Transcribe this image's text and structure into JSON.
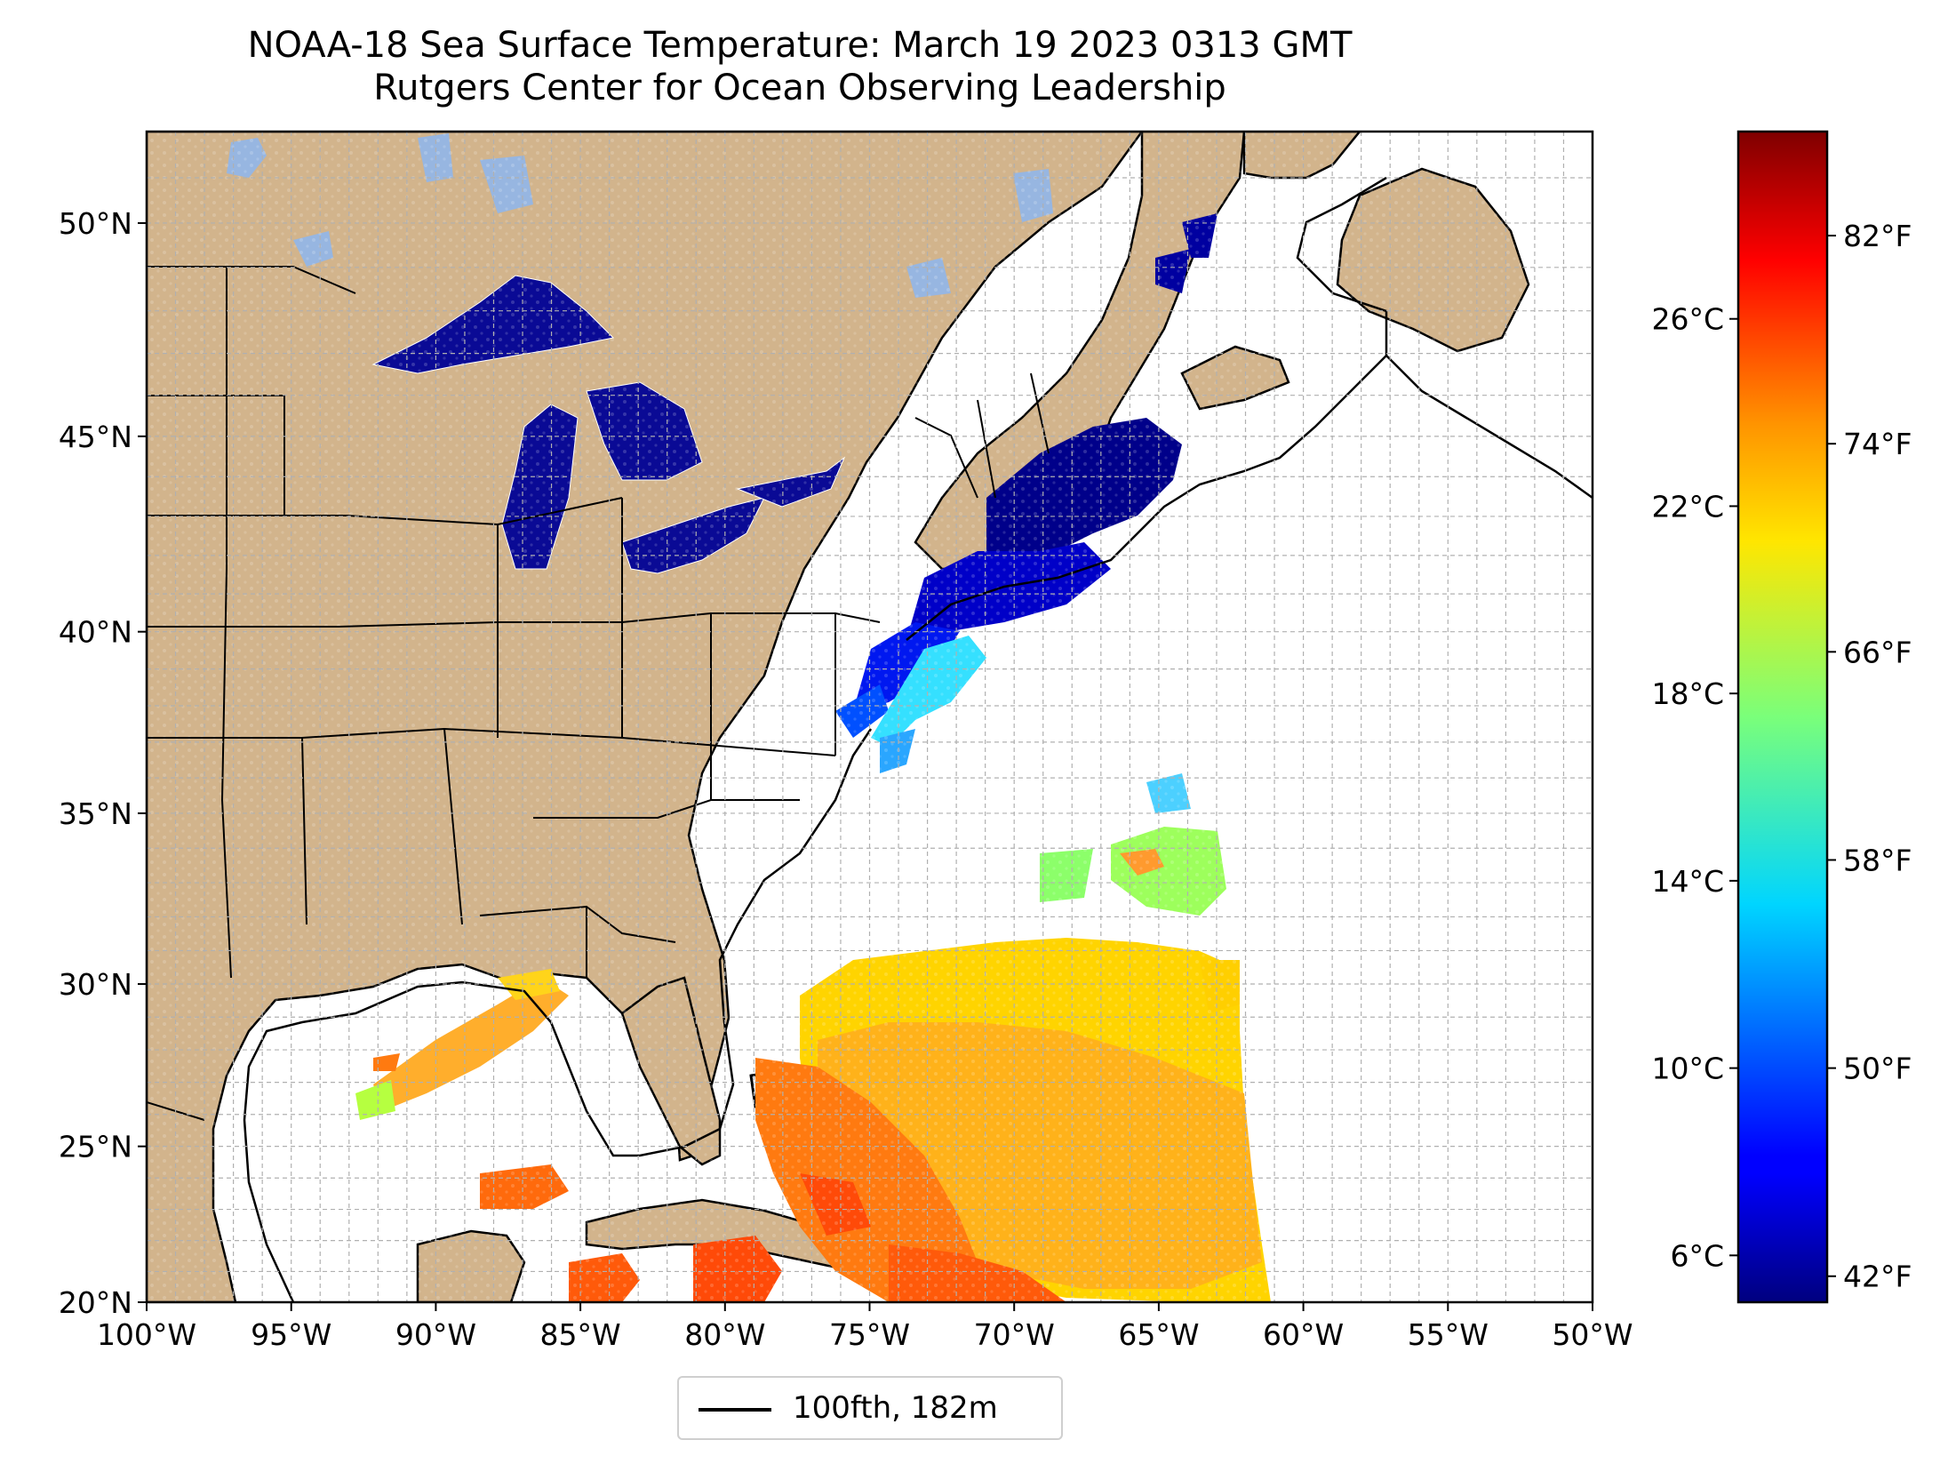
{
  "title": "NOAA-18 Sea Surface Temperature: March 19 2023 0313 GMT",
  "subtitle": "Rutgers Center for Ocean Observing Leadership",
  "map": {
    "lon_range": [
      -100,
      -50
    ],
    "lat_range": [
      20,
      52
    ],
    "lon_ticks": [
      {
        "value": -100,
        "label": "100°W"
      },
      {
        "value": -95,
        "label": "95°W"
      },
      {
        "value": -90,
        "label": "90°W"
      },
      {
        "value": -85,
        "label": "85°W"
      },
      {
        "value": -80,
        "label": "80°W"
      },
      {
        "value": -75,
        "label": "75°W"
      },
      {
        "value": -70,
        "label": "70°W"
      },
      {
        "value": -65,
        "label": "65°W"
      },
      {
        "value": -60,
        "label": "60°W"
      },
      {
        "value": -55,
        "label": "55°W"
      },
      {
        "value": -50,
        "label": "50°W"
      }
    ],
    "lat_ticks": [
      {
        "value": 20,
        "label": "20°N"
      },
      {
        "value": 25,
        "label": "25°N"
      },
      {
        "value": 30,
        "label": "30°N"
      },
      {
        "value": 35,
        "label": "35°N"
      },
      {
        "value": 40,
        "label": "40°N"
      },
      {
        "value": 45,
        "label": "45°N"
      },
      {
        "value": 50,
        "label": "50°N"
      }
    ],
    "grid": true,
    "land_color": "#d2b48c",
    "lake_color": "#97b6e1",
    "ocean_color": "#ffffff"
  },
  "colorbar": {
    "colormap": "jet",
    "celsius_range": [
      5.0,
      30.0
    ],
    "celsius_ticks": [
      {
        "value": 6,
        "label": "6°C"
      },
      {
        "value": 10,
        "label": "10°C"
      },
      {
        "value": 14,
        "label": "14°C"
      },
      {
        "value": 18,
        "label": "18°C"
      },
      {
        "value": 22,
        "label": "22°C"
      },
      {
        "value": 26,
        "label": "26°C"
      }
    ],
    "fahrenheit_ticks": [
      {
        "value": 42,
        "label": "42°F"
      },
      {
        "value": 50,
        "label": "50°F"
      },
      {
        "value": 58,
        "label": "58°F"
      },
      {
        "value": 66,
        "label": "66°F"
      },
      {
        "value": 74,
        "label": "74°F"
      },
      {
        "value": 82,
        "label": "82°F"
      }
    ]
  },
  "legend": {
    "entries": [
      {
        "label": "100fth, 182m",
        "color": "#000000"
      }
    ]
  }
}
